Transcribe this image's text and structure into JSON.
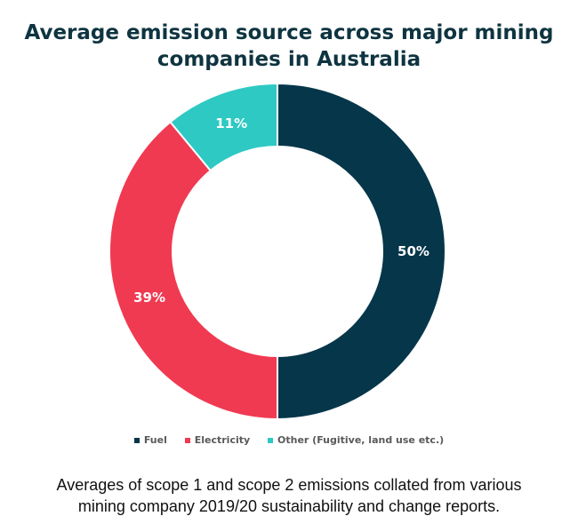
{
  "chart_data": {
    "type": "pie",
    "donut": true,
    "title_lines": [
      "Average emission source across major mining",
      "companies in Australia"
    ],
    "categories": [
      "Fuel",
      "Electricity",
      "Other (Fugitive, land use etc.)"
    ],
    "values": [
      50,
      39,
      11
    ],
    "data_labels": [
      "50%",
      "39%",
      "11%"
    ],
    "colors": [
      "#06364a",
      "#f03a52",
      "#2ec9c3"
    ],
    "legend_position": "bottom"
  },
  "caption_lines": [
    "Averages of scope 1 and scope 2 emissions collated from various",
    "mining company 2019/20 sustainability and change reports."
  ]
}
